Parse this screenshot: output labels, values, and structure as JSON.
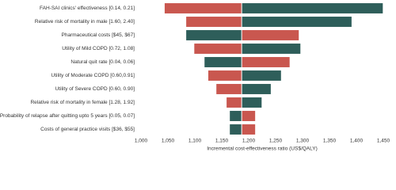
{
  "chart_data": {
    "type": "tornado",
    "x_label": "Incremental cost-effectiveness ratio (US$/QALY)",
    "categories": [
      "FAH-SAI clinics' effectiveness [0.14, 0.21]",
      "Relative risk of mortality in male [1.60, 2.40]",
      "Pharmaceutical costs [$45, $67]",
      "Utility of Mild COPD [0.72, 1.08]",
      "Natural quit rate [0.04, 0.06]",
      "Utility of Moderate COPD [0.60,0.91]",
      "Utility of Severe COPD [0.60, 0.90]",
      "Relative risk of mortality in female [1.28, 1.92]",
      "Probability of relapse after quitting upto 5 years [0.05, 0.07]",
      "Costs of general practice visits [$36, $55]"
    ],
    "base_value": 1187,
    "series": [
      {
        "color": "#c9574f",
        "values": [
          1044,
          1084,
          1293,
          1099,
          1276,
          1125,
          1140,
          1159,
          1212,
          1212
        ]
      },
      {
        "color": "#2e5e5a",
        "values": [
          1449,
          1391,
          1084,
          1296,
          1118,
          1260,
          1241,
          1224,
          1165,
          1165
        ]
      }
    ],
    "xlim": [
      1000,
      1450
    ],
    "xticks": [
      {
        "value": 1000,
        "label": "1,000"
      },
      {
        "value": 1050,
        "label": "1,050"
      },
      {
        "value": 1100,
        "label": "1,100"
      },
      {
        "value": 1150,
        "label": "1,150"
      },
      {
        "value": 1200,
        "label": "1,200"
      },
      {
        "value": 1250,
        "label": "1,250"
      },
      {
        "value": 1300,
        "label": "1,300"
      },
      {
        "value": 1350,
        "label": "1,350"
      },
      {
        "value": 1400,
        "label": "1,400"
      },
      {
        "value": 1450,
        "label": "1,450"
      }
    ]
  }
}
